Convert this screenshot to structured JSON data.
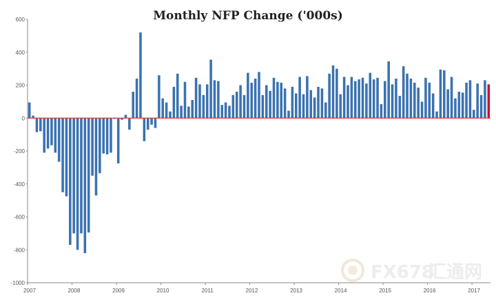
{
  "chart_data": {
    "type": "bar",
    "title": "Monthly NFP Change ('000s)",
    "xlabel": "",
    "ylabel": "",
    "ylim": [
      -1000,
      600
    ],
    "yticks": [
      600,
      400,
      200,
      0,
      -200,
      -400,
      -600,
      -800,
      -1000
    ],
    "grid": false,
    "legend": "none",
    "year_labels": [
      "2007",
      "2008",
      "2009",
      "2010",
      "2011",
      "2012",
      "2013",
      "2014",
      "2015",
      "2016",
      "2017"
    ],
    "colors": {
      "bar": "#3a72b0",
      "last_bar": "#c8102e",
      "zero_line": "#e03030"
    },
    "values": [
      95,
      15,
      -85,
      -80,
      -210,
      -185,
      -165,
      -210,
      -265,
      -450,
      -475,
      -770,
      -700,
      -800,
      -700,
      -820,
      -695,
      -350,
      -470,
      -335,
      -215,
      -220,
      -210,
      -5,
      -275,
      -10,
      20,
      -70,
      160,
      240,
      520,
      -140,
      -70,
      -40,
      -60,
      260,
      120,
      95,
      40,
      190,
      270,
      75,
      220,
      70,
      110,
      245,
      205,
      140,
      205,
      355,
      230,
      225,
      80,
      95,
      75,
      140,
      160,
      200,
      140,
      275,
      215,
      240,
      280,
      140,
      200,
      165,
      245,
      220,
      215,
      180,
      45,
      190,
      150,
      250,
      145,
      255,
      170,
      125,
      190,
      180,
      95,
      270,
      320,
      300,
      145,
      250,
      200,
      250,
      225,
      235,
      245,
      210,
      275,
      235,
      245,
      85,
      225,
      345,
      205,
      240,
      135,
      315,
      270,
      240,
      215,
      185,
      100,
      245,
      215,
      150,
      40,
      295,
      290,
      175,
      250,
      120,
      160,
      155,
      215,
      230,
      50,
      210,
      140,
      230,
      205
    ]
  },
  "watermark": {
    "text": "FX678",
    "cjk": "汇通网"
  }
}
